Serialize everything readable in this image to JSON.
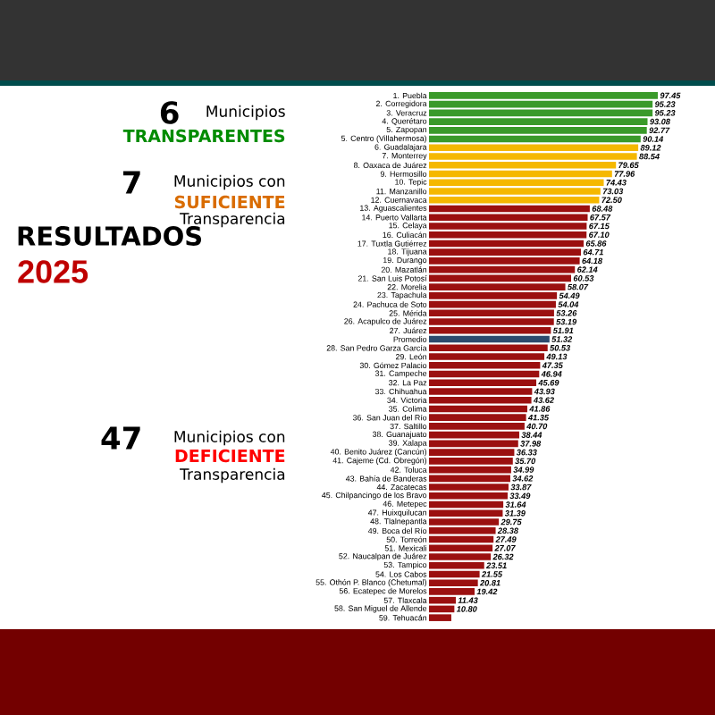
{
  "chart_data": {
    "type": "bar",
    "orientation": "horizontal",
    "title": "RESULTADOS",
    "subtitle": "2025",
    "annotations": [
      "6",
      "Municipios",
      "TRANSPARENTES",
      "7",
      "Municipios con",
      "SUFICIENTE",
      "Transparencia",
      "47",
      "Municipios con",
      "DEFICIENTE",
      "Transparencia"
    ],
    "categories": [
      "1. Puebla",
      "2. Corregidora",
      "3. Veracruz",
      "4. Querétaro",
      "5. Zapopan",
      "5. Centro (Villahermosa)",
      "6. Guadalajara",
      "7. Monterrey",
      "8. Oaxaca de Juárez",
      "9. Hermosillo",
      "10. Tepic",
      "11. Manzanillo",
      "12. Cuernavaca",
      "13. Aguascalientes",
      "14. Puerto Vallarta",
      "15. Celaya",
      "16. Culiacán",
      "17. Tuxtla Gutiérrez",
      "18. Tijuana",
      "19. Durango",
      "20. Mazatlán",
      "21. San Luis Potosí",
      "22. Morelia",
      "23. Tapachula",
      "24. Pachuca de Soto",
      "25. Mérida",
      "26. Acapulco de Juárez",
      "27. Juárez",
      "Promedio",
      "28. San Pedro Garza García",
      "29. León",
      "30. Gómez Palacio",
      "31. Campeche",
      "32. La Paz",
      "33. Chihuahua",
      "34. Victoria",
      "35. Colima",
      "36. San Juan del Río",
      "37. Saltillo",
      "38. Guanajuato",
      "39. Xalapa",
      "40. Benito Juárez (Cancún)",
      "41. Cajeme (Cd. Obregón)",
      "42. Toluca",
      "43. Bahía de Banderas",
      "44. Zacatecas",
      "45. Chilpancingo de los Bravo",
      "46. Metepec",
      "47. Huixquilucan",
      "48. Tlalnepantla",
      "49. Boca del Río",
      "50. Torreón",
      "51. Mexicali",
      "52. Naucalpan de Juárez",
      "53. Tampico",
      "54. Los Cabos",
      "55. Othón P. Blanco (Chetumal)",
      "56. Ecatepec de Morelos",
      "57. Tlaxcala",
      "58. San Miguel de Allende",
      "59. Tehuacán"
    ],
    "values": [
      97.45,
      95.23,
      95.23,
      93.08,
      92.77,
      90.14,
      89.12,
      88.54,
      79.65,
      77.96,
      74.43,
      73.03,
      72.5,
      68.48,
      67.57,
      67.15,
      67.1,
      65.86,
      64.71,
      64.18,
      62.14,
      60.53,
      58.07,
      54.49,
      54.04,
      53.26,
      53.19,
      51.91,
      51.32,
      50.53,
      49.13,
      47.35,
      46.94,
      45.69,
      43.93,
      43.62,
      41.86,
      41.35,
      40.7,
      38.44,
      37.98,
      36.33,
      35.7,
      34.99,
      34.62,
      33.87,
      33.49,
      31.64,
      31.39,
      29.75,
      28.38,
      27.49,
      27.07,
      26.32,
      23.51,
      21.55,
      20.81,
      19.42,
      11.43,
      10.8,
      9.5
    ],
    "value_labels": [
      "97.45",
      "95.23",
      "95.23",
      "93.08",
      "92.77",
      "90.14",
      "89.12",
      "88.54",
      "79.65",
      "77.96",
      "74.43",
      "73.03",
      "72.50",
      "68.48",
      "67.57",
      "67.15",
      "67.10",
      "65.86",
      "64.71",
      "64.18",
      "62.14",
      "60.53",
      "58.07",
      "54.49",
      "54.04",
      "53.26",
      "53.19",
      "51.91",
      "51.32",
      "50.53",
      "49.13",
      "47.35",
      "46.94",
      "45.69",
      "43.93",
      "43.62",
      "41.86",
      "41.35",
      "40.70",
      "38.44",
      "37.98",
      "36.33",
      "35.70",
      "34.99",
      "34.62",
      "33.87",
      "33.49",
      "31.64",
      "31.39",
      "29.75",
      "28.38",
      "27.49",
      "27.07",
      "26.32",
      "23.51",
      "21.55",
      "20.81",
      "19.42",
      "11.43",
      "10.80",
      null
    ],
    "colors": [
      "#3a9a2a",
      "#3a9a2a",
      "#3a9a2a",
      "#3a9a2a",
      "#3a9a2a",
      "#3a9a2a",
      "#f5b800",
      "#f5b800",
      "#f5b800",
      "#f5b800",
      "#f5b800",
      "#f5b800",
      "#f5b800",
      "#9b1010",
      "#9b1010",
      "#9b1010",
      "#9b1010",
      "#9b1010",
      "#9b1010",
      "#9b1010",
      "#9b1010",
      "#9b1010",
      "#9b1010",
      "#9b1010",
      "#9b1010",
      "#9b1010",
      "#9b1010",
      "#9b1010",
      "#2c4a6e",
      "#9b1010",
      "#9b1010",
      "#9b1010",
      "#9b1010",
      "#9b1010",
      "#9b1010",
      "#9b1010",
      "#9b1010",
      "#9b1010",
      "#9b1010",
      "#9b1010",
      "#9b1010",
      "#9b1010",
      "#9b1010",
      "#9b1010",
      "#9b1010",
      "#9b1010",
      "#9b1010",
      "#9b1010",
      "#9b1010",
      "#9b1010",
      "#9b1010",
      "#9b1010",
      "#9b1010",
      "#9b1010",
      "#9b1010",
      "#9b1010",
      "#9b1010",
      "#9b1010",
      "#9b1010",
      "#9b1010",
      "#9b1010"
    ]
  }
}
